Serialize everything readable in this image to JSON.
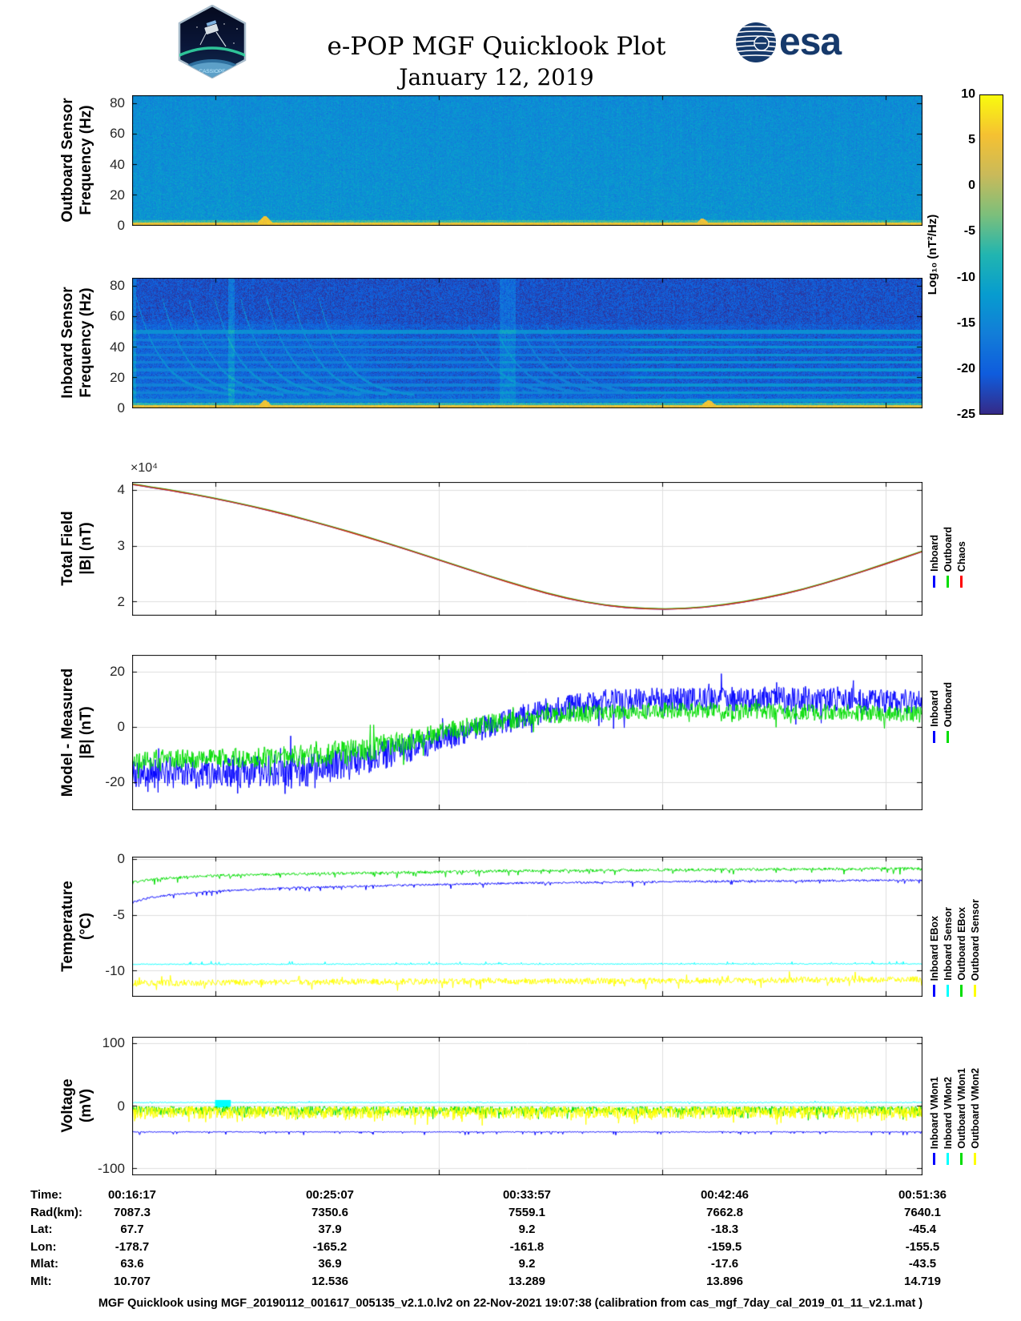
{
  "header": {
    "title": "e-POP MGF Quicklook Plot",
    "subtitle": "January 12, 2019",
    "cassiope_label": "CASSIOPE",
    "esa_label": "esa"
  },
  "colorbar": {
    "label": "Log₁₀ (nT²/Hz)",
    "ticks": [
      10,
      5,
      0,
      -5,
      -10,
      -15,
      -20,
      -25
    ],
    "range": [
      -25,
      10
    ],
    "colors": [
      "#352a87",
      "#0f5cdd",
      "#127dd8",
      "#079ccf",
      "#21b5b0",
      "#7cbf7b",
      "#c9ba5a",
      "#f5c132",
      "#f9fb0e"
    ]
  },
  "chart_data": [
    {
      "id": "outboard-spectrogram",
      "type": "heatmap",
      "ylabel1": "Outboard Sensor",
      "ylabel2": "Frequency (Hz)",
      "ylim": [
        0,
        85.3
      ],
      "yticks": [
        0,
        20,
        40,
        60,
        80
      ],
      "xgrid": [
        0.105,
        0.388,
        0.671,
        0.954
      ],
      "seed": 7,
      "base_level": -13,
      "noise": 2.6,
      "vert_gradient": -1.2,
      "bottom_band": {
        "fmax": 1.7,
        "level": 5,
        "noise": 2.2
      },
      "low_band": {
        "fmax": 3.4,
        "level": -6.5,
        "noise": 2.4
      },
      "bumps": [
        {
          "x": 0.168,
          "w": 0.009,
          "fmax": 6,
          "level": 5.5
        },
        {
          "x": 0.722,
          "w": 0.008,
          "fmax": 4.5,
          "level": 5
        }
      ]
    },
    {
      "id": "inboard-spectrogram",
      "type": "heatmap",
      "ylabel1": "Inboard Sensor",
      "ylabel2": "Frequency (Hz)",
      "ylim": [
        0,
        85.3
      ],
      "yticks": [
        0,
        20,
        40,
        60,
        80
      ],
      "xgrid": [
        0.105,
        0.388,
        0.671,
        0.954
      ],
      "seed": 11,
      "base_level": -20.3,
      "noise": 2.8,
      "top_dim": {
        "fmin": 55,
        "delta": -1.2
      },
      "low_enhance": {
        "fmax": 12,
        "delta": 2.2
      },
      "left_enhance": {
        "xmax": 0.3,
        "fmax": 58,
        "delta": 1.6
      },
      "hlines": [
        {
          "f": 50,
          "level": -13.8,
          "w": 1.1,
          "fade": false
        },
        {
          "f": 45,
          "level": -16,
          "w": 0.8
        },
        {
          "f": 40,
          "level": -16,
          "w": 0.8
        },
        {
          "f": 35,
          "level": -16.3,
          "w": 0.8
        },
        {
          "f": 30,
          "level": -16.3,
          "w": 0.8
        },
        {
          "f": 25,
          "level": -15.5,
          "w": 0.9
        },
        {
          "f": 20,
          "level": -16,
          "w": 0.8
        },
        {
          "f": 15,
          "level": -15.8,
          "w": 0.8
        },
        {
          "f": 10,
          "level": -15.5,
          "w": 0.8
        },
        {
          "f": 5,
          "level": -15,
          "w": 0.8
        }
      ],
      "hline_fade": {
        "after": 0.63,
        "delta": 2.6
      },
      "chirp_groups": [
        {
          "starts": [
            0.005,
            0.038,
            0.071,
            0.104,
            0.137,
            0.17,
            0.203,
            0.236
          ],
          "f0": 72,
          "fmin": 7,
          "decay": 30,
          "len": 0.12,
          "level": -14
        },
        {
          "starts": [
            0.425,
            0.458,
            0.491,
            0.524
          ],
          "f0": 55,
          "fmin": 8,
          "decay": 28,
          "len": 0.1,
          "level": -16
        }
      ],
      "vstrips": [
        {
          "x": 0.125,
          "w": 0.004,
          "delta": 5
        },
        {
          "x": 0.475,
          "w": 0.01,
          "delta": 3.5
        },
        {
          "x": 0.0015,
          "w": 0.003,
          "delta": 5
        }
      ],
      "bottom_band": {
        "fmax": 1.7,
        "level": 4.5,
        "noise": 2.4
      },
      "low_band": {
        "fmax": 3.2,
        "level": -7.5,
        "noise": 2.6
      },
      "bumps": [
        {
          "x": 0.168,
          "w": 0.008,
          "fmax": 5,
          "level": 5
        },
        {
          "x": 0.73,
          "w": 0.009,
          "fmax": 5,
          "level": 5
        }
      ]
    },
    {
      "id": "total-field",
      "type": "line",
      "ylabel1": "Total Field",
      "ylabel2": "|B| (nT)",
      "exponent": "×10⁴",
      "ylim": [
        1.757,
        4.143
      ],
      "yticks": [
        2,
        3,
        4
      ],
      "xgrid": [
        0.105,
        0.388,
        0.671,
        0.954
      ],
      "legend": [
        {
          "label": "Inboard",
          "color": "#0000ff"
        },
        {
          "label": "Outboard",
          "color": "#00dd00"
        },
        {
          "label": "Chaos",
          "color": "#ff0000"
        }
      ],
      "curve": {
        "x": [
          0,
          0.05,
          0.1,
          0.15,
          0.2,
          0.25,
          0.3,
          0.35,
          0.4,
          0.45,
          0.5,
          0.55,
          0.6,
          0.65,
          0.7,
          0.75,
          0.8,
          0.85,
          0.9,
          0.95,
          1
        ],
        "y": [
          4.1,
          3.99,
          3.86,
          3.71,
          3.54,
          3.35,
          3.14,
          2.92,
          2.69,
          2.46,
          2.24,
          2.05,
          1.92,
          1.86,
          1.86,
          1.93,
          2.05,
          2.21,
          2.42,
          2.65,
          2.89
        ]
      },
      "series": [
        {
          "name": "Inboard",
          "kind": "curve",
          "color": "#0000ff",
          "width": 1.3,
          "offset": 0
        },
        {
          "name": "Outboard",
          "kind": "curve",
          "color": "#00dd00",
          "width": 1.3,
          "offset": 0.008
        },
        {
          "name": "Chaos",
          "kind": "curve",
          "color": "#d42a10",
          "width": 1.4,
          "offset": 0
        }
      ]
    },
    {
      "id": "model-measured",
      "type": "line",
      "ylabel1": "Model - Measured",
      "ylabel2": "|B| (nT)",
      "ylim": [
        -30,
        26
      ],
      "yticks": [
        -20,
        0,
        20
      ],
      "xgrid": [
        0.105,
        0.388,
        0.671,
        0.954
      ],
      "legend": [
        {
          "label": "Inboard",
          "color": "#0000ff"
        },
        {
          "label": "Outboard",
          "color": "#00dd00"
        }
      ],
      "series": [
        {
          "name": "Inboard",
          "kind": "noisy",
          "color": "#0000ff",
          "seed": 21,
          "points": 1400,
          "width": 1,
          "x": [
            0,
            0.1,
            0.2,
            0.25,
            0.3,
            0.35,
            0.4,
            0.45,
            0.5,
            0.55,
            0.6,
            0.7,
            0.8,
            0.9,
            1
          ],
          "center": [
            -17,
            -16.5,
            -16,
            -15,
            -12,
            -8,
            -4,
            0,
            4,
            7,
            9,
            10,
            10,
            9.5,
            9
          ],
          "amp": [
            6,
            6,
            6.5,
            6,
            5.5,
            5,
            4.5,
            4.5,
            4.5,
            4.5,
            4.5,
            4.5,
            4.5,
            4.5,
            4.5
          ],
          "spikes": {
            "prob": 0.05,
            "scale": 1.6,
            "dir": 0
          }
        },
        {
          "name": "Outboard",
          "kind": "noisy",
          "color": "#00dd00",
          "seed": 22,
          "points": 1400,
          "width": 1,
          "x": [
            0,
            0.1,
            0.2,
            0.25,
            0.3,
            0.35,
            0.4,
            0.45,
            0.5,
            0.55,
            0.6,
            0.7,
            0.8,
            0.9,
            1
          ],
          "center": [
            -12,
            -11.5,
            -11,
            -10,
            -8,
            -5,
            -1.5,
            1,
            3,
            4.5,
            5,
            6,
            5.5,
            5,
            4.5
          ],
          "amp": [
            3.5,
            3.5,
            4,
            4.5,
            4.5,
            4,
            3.5,
            3.5,
            3,
            3,
            3,
            3,
            3,
            3,
            3
          ],
          "spikes": {
            "prob": 0.05,
            "scale": 1.5,
            "dir": 0
          }
        }
      ]
    },
    {
      "id": "temperature",
      "type": "line",
      "ylabel1": "Temperature",
      "ylabel2": "(°C)",
      "ylim": [
        -12.29,
        0.21
      ],
      "yticks": [
        -10,
        -5,
        0
      ],
      "xgrid": [
        0.105,
        0.388,
        0.671,
        0.954
      ],
      "legend": [
        {
          "label": "Inboard EBox",
          "color": "#0000ff"
        },
        {
          "label": "Inboard Sensor",
          "color": "#00ffff"
        },
        {
          "label": "Outboard EBox",
          "color": "#00dd00"
        },
        {
          "label": "Outboard Sensor",
          "color": "#ffff00"
        }
      ],
      "series": [
        {
          "name": "Inboard EBox",
          "kind": "noisy",
          "color": "#0000ff",
          "seed": 31,
          "points": 1200,
          "width": 1,
          "x": [
            0,
            0.02,
            0.05,
            0.1,
            0.2,
            0.35,
            0.5,
            0.75,
            1
          ],
          "center": [
            -3.9,
            -3.5,
            -3.2,
            -2.9,
            -2.6,
            -2.35,
            -2.15,
            -2,
            -1.9
          ],
          "amp": 0.09,
          "spikes": {
            "prob": 0.05,
            "scale": 4,
            "dir": -1
          }
        },
        {
          "name": "Inboard Sensor",
          "kind": "noisy",
          "color": "#00ffff",
          "seed": 32,
          "points": 1200,
          "width": 1,
          "x": [
            0,
            1
          ],
          "center": [
            -9.45,
            -9.4
          ],
          "amp": 0.05,
          "spikes": {
            "prob": 0.05,
            "scale": 5,
            "dir": 1
          }
        },
        {
          "name": "Outboard EBox",
          "kind": "noisy",
          "color": "#00dd00",
          "seed": 33,
          "points": 1200,
          "width": 1,
          "x": [
            0,
            0.02,
            0.05,
            0.1,
            0.2,
            0.35,
            0.5,
            0.75,
            1
          ],
          "center": [
            -2.1,
            -1.9,
            -1.7,
            -1.5,
            -1.35,
            -1.2,
            -1.05,
            -0.95,
            -0.85
          ],
          "amp": 0.12,
          "spikes": {
            "prob": 0.07,
            "scale": 3.5,
            "dir": -1
          }
        },
        {
          "name": "Outboard Sensor",
          "kind": "noisy",
          "color": "#ffff00",
          "seed": 34,
          "points": 1200,
          "width": 1,
          "x": [
            0,
            0.3,
            0.6,
            1
          ],
          "center": [
            -11.15,
            -11,
            -10.95,
            -10.8
          ],
          "amp": 0.28,
          "spikes": {
            "prob": 0.06,
            "scale": 2,
            "dir": 0
          }
        }
      ]
    },
    {
      "id": "voltage",
      "type": "line",
      "ylabel1": "Voltage",
      "ylabel2": "(mV)",
      "ylim": [
        -110,
        110
      ],
      "yticks": [
        -100,
        0,
        100
      ],
      "xgrid": [
        0.105,
        0.388,
        0.671,
        0.954
      ],
      "legend": [
        {
          "label": "Inboard VMon1",
          "color": "#0000ff"
        },
        {
          "label": "Inboard VMon2",
          "color": "#00ffff"
        },
        {
          "label": "Outboard VMon1",
          "color": "#00dd00"
        },
        {
          "label": "Outboard VMon2",
          "color": "#ffff00"
        }
      ],
      "patches": [
        {
          "x": 0.115,
          "w": 0.02,
          "y0": -3,
          "y1": 9,
          "color": "#00ffff"
        }
      ],
      "series": [
        {
          "name": "Inboard VMon1",
          "kind": "noisy",
          "color": "#0000ff",
          "seed": 41,
          "points": 1400,
          "width": 1,
          "x": [
            0,
            1
          ],
          "center": [
            -42,
            -42
          ],
          "amp": 0.7,
          "spikes": {
            "prob": 0.05,
            "scale": 7,
            "dir": -1
          }
        },
        {
          "name": "Inboard VMon2",
          "kind": "noisy",
          "color": "#00ffff",
          "seed": 42,
          "points": 1200,
          "width": 1,
          "x": [
            0,
            1
          ],
          "center": [
            5,
            5
          ],
          "amp": 0.8,
          "spikes": {
            "prob": 0.02,
            "scale": 3,
            "dir": 0
          }
        },
        {
          "name": "Outboard VMon1",
          "kind": "noisy",
          "color": "#00dd00",
          "seed": 43,
          "points": 1400,
          "width": 1,
          "x": [
            0,
            1
          ],
          "center": [
            -6,
            -6
          ],
          "amp": 5,
          "amp_down": 9,
          "spikes": {
            "prob": 0.1,
            "scale": 1.8,
            "dir": -1
          }
        },
        {
          "name": "Outboard VMon2",
          "kind": "noisy",
          "color": "#ffff00",
          "seed": 44,
          "points": 1600,
          "width": 1,
          "x": [
            0,
            1
          ],
          "center": [
            -8,
            -8
          ],
          "amp": 7,
          "amp_down": 13,
          "spikes": {
            "prob": 0.12,
            "scale": 1.6,
            "dir": -1
          }
        }
      ]
    }
  ],
  "table": {
    "rows": [
      {
        "label": "Time:",
        "values": [
          "00:16:17",
          "00:25:07",
          "00:33:57",
          "00:42:46",
          "00:51:36"
        ]
      },
      {
        "label": "Rad(km):",
        "values": [
          "7087.3",
          "7350.6",
          "7559.1",
          "7662.8",
          "7640.1"
        ]
      },
      {
        "label": "Lat:",
        "values": [
          "67.7",
          "37.9",
          "9.2",
          "-18.3",
          "-45.4"
        ]
      },
      {
        "label": "Lon:",
        "values": [
          "-178.7",
          "-165.2",
          "-161.8",
          "-159.5",
          "-155.5"
        ]
      },
      {
        "label": "Mlat:",
        "values": [
          "63.6",
          "36.9",
          "9.2",
          "-17.6",
          "-43.5"
        ]
      },
      {
        "label": "Mlt:",
        "values": [
          "10.707",
          "12.536",
          "13.289",
          "13.896",
          "14.719"
        ]
      }
    ]
  },
  "footer": {
    "text": "MGF Quicklook using MGF_20190112_001617_005135_v2.1.0.lv2 on 22-Nov-2021 19:07:38 (calibration from cas_mgf_7day_cal_2019_01_11_v2.1.mat )"
  }
}
